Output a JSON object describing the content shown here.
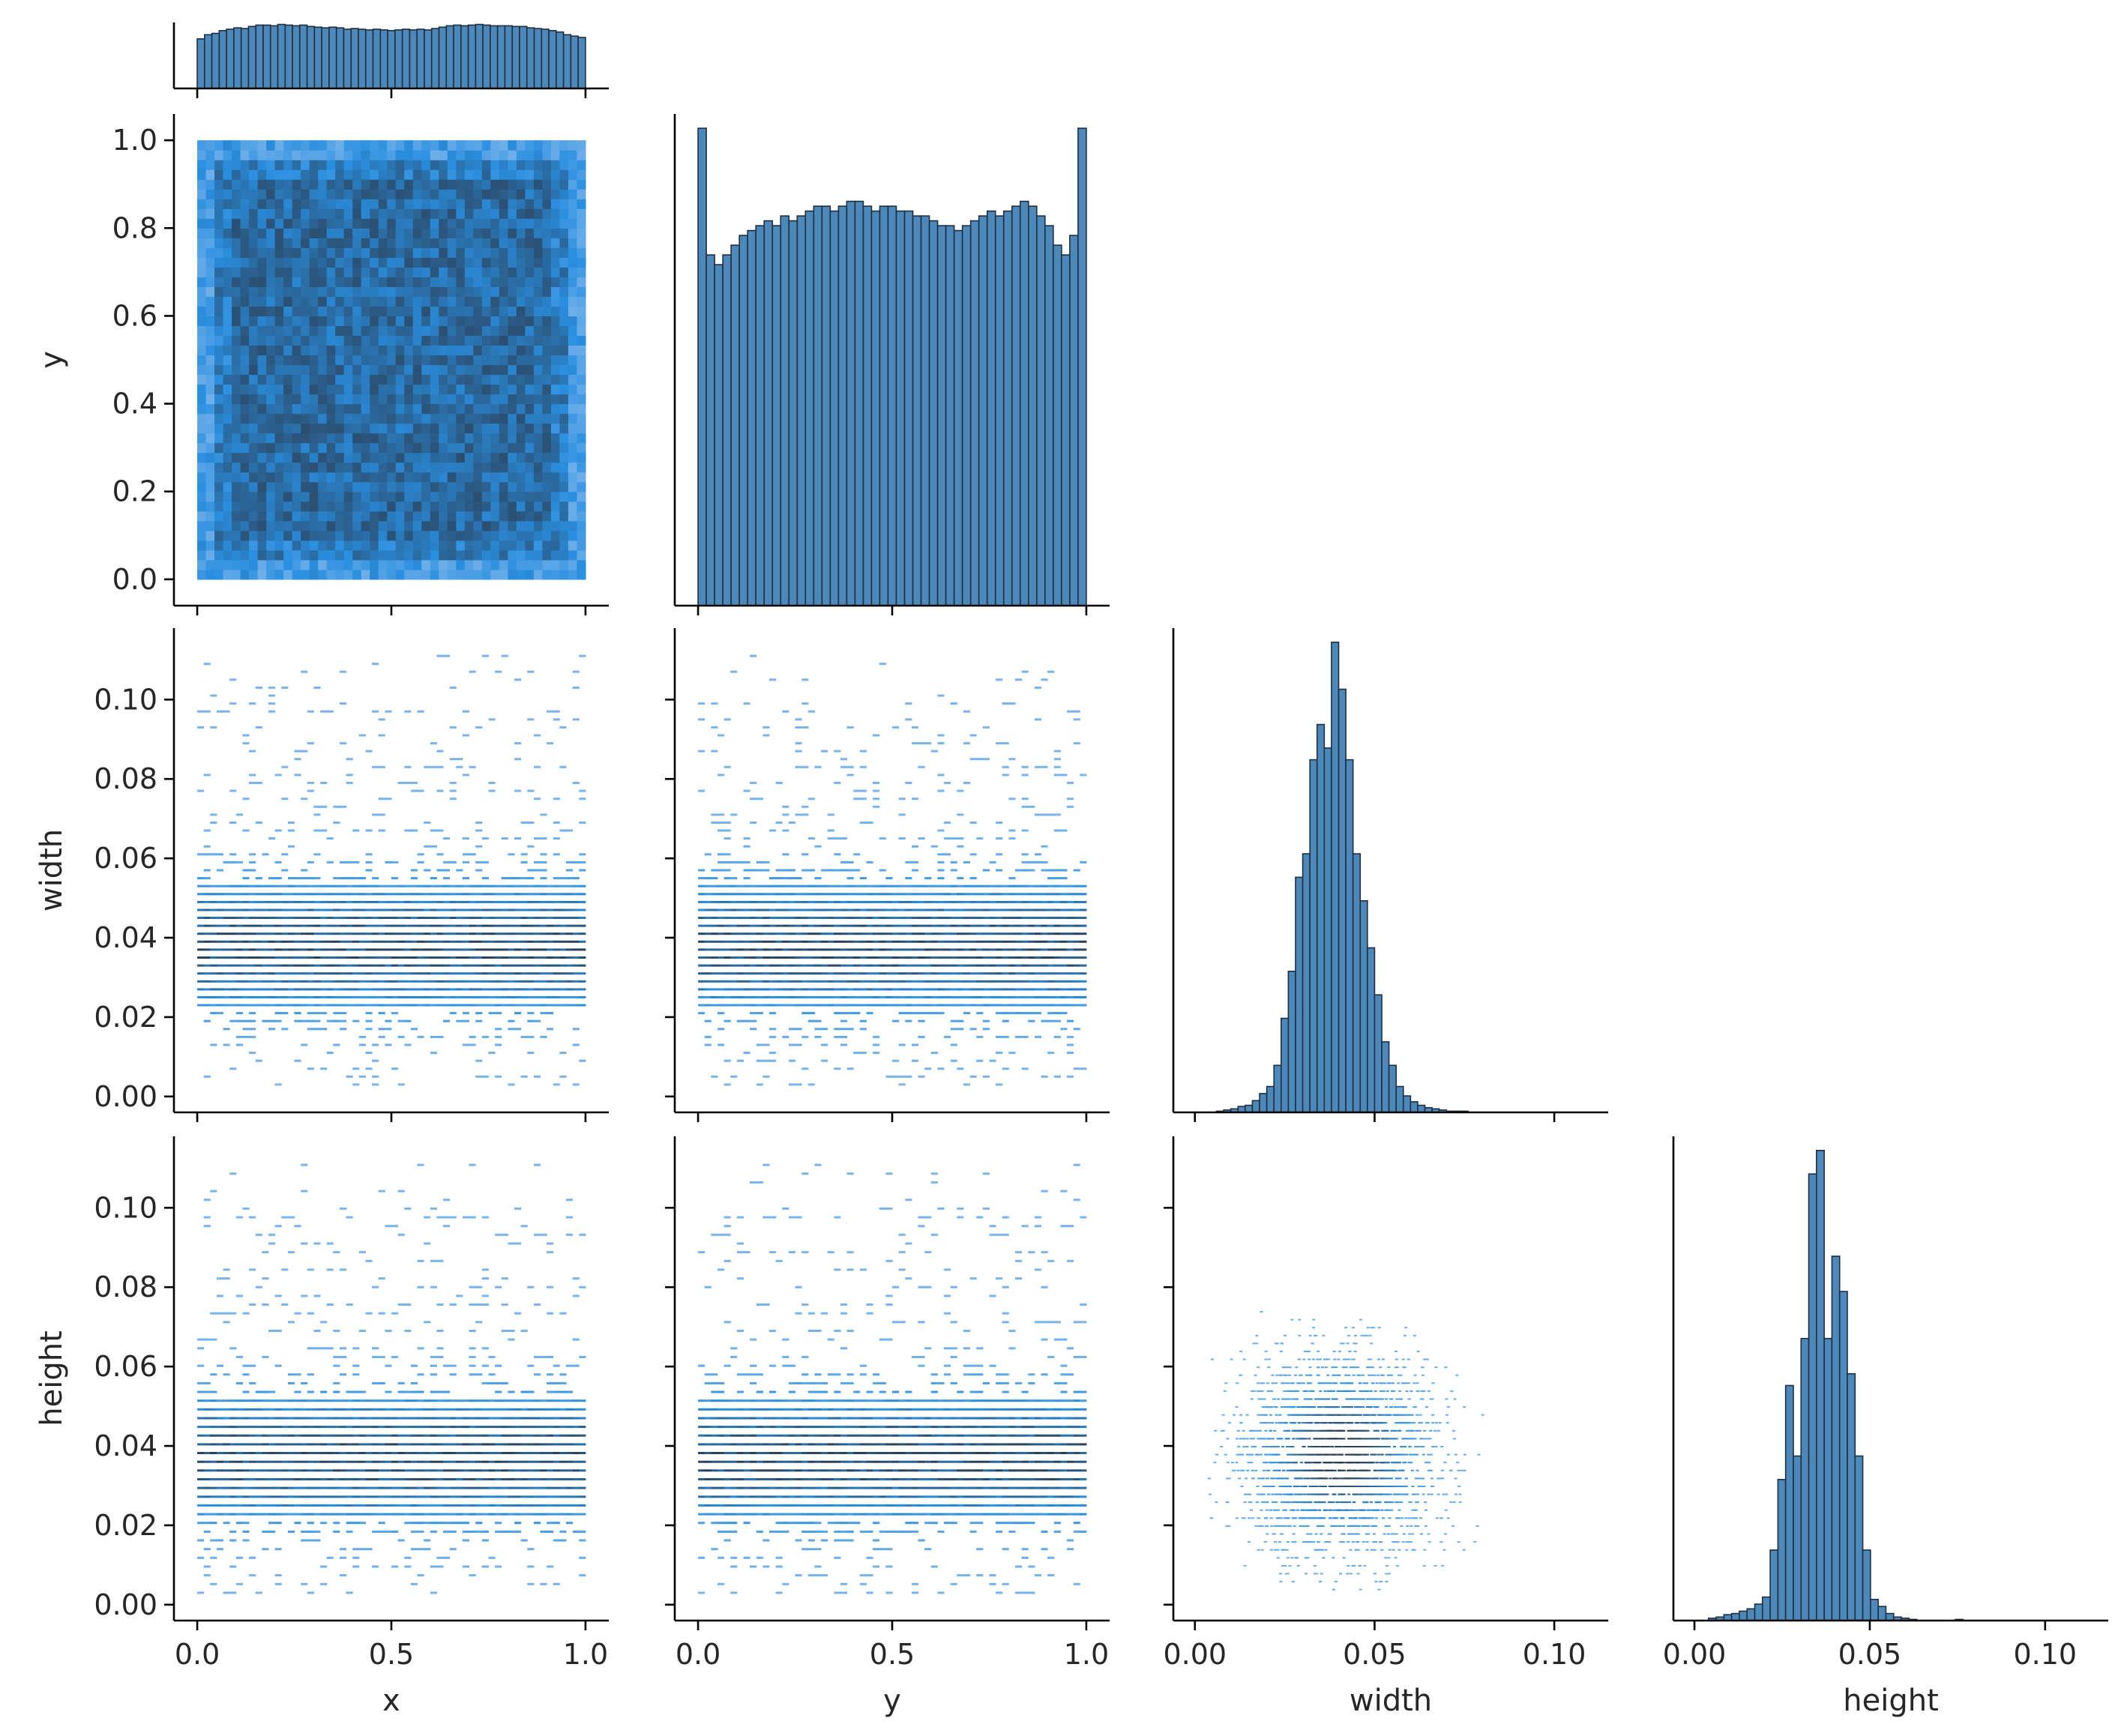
{
  "figure": {
    "variables": [
      "x",
      "y",
      "width",
      "height"
    ],
    "layout": "corner"
  },
  "colors": {
    "hist_fill": "#4c88ba",
    "hist_edge": "#1f2f3f",
    "heat_low": "#9cc4ef",
    "heat_mid": "#2a8fe0",
    "heat_high": "#2b3f55"
  },
  "chart_data": [
    {
      "type": "bar",
      "name": "hist-x",
      "xlabel": "",
      "ylabel": "",
      "xlim": [
        -0.06,
        1.06
      ],
      "x_ticks": [],
      "x_tick_labels": [],
      "bin_range": [
        0,
        1
      ],
      "values": [
        72,
        78,
        80,
        84,
        86,
        88,
        87,
        90,
        92,
        92,
        91,
        93,
        92,
        91,
        92,
        90,
        89,
        88,
        89,
        88,
        86,
        87,
        86,
        85,
        86,
        85,
        84,
        85,
        86,
        85,
        86,
        85,
        87,
        89,
        91,
        92,
        91,
        92,
        93,
        92,
        91,
        91,
        91,
        90,
        90,
        88,
        87,
        86,
        84,
        82,
        78,
        76,
        74
      ]
    },
    {
      "type": "heatmap",
      "name": "x-vs-y",
      "xlabel": "",
      "ylabel": "y",
      "xlim": [
        -0.06,
        1.06
      ],
      "ylim": [
        -0.06,
        1.06
      ],
      "y_ticks": [
        0.0,
        0.2,
        0.4,
        0.6,
        0.8,
        1.0
      ],
      "y_tick_labels": [
        "0.0",
        "0.2",
        "0.4",
        "0.6",
        "0.8",
        "1.0"
      ],
      "x_range": [
        0,
        1
      ],
      "y_range": [
        0,
        1
      ],
      "grid": [
        45,
        45
      ]
    },
    {
      "type": "bar",
      "name": "hist-y",
      "xlabel": "",
      "ylabel": "",
      "xlim": [
        -0.06,
        1.06
      ],
      "x_ticks": [],
      "x_tick_labels": [],
      "bin_range": [
        0,
        1
      ],
      "values": [
        98,
        72,
        70,
        72,
        74,
        76,
        77,
        78,
        79,
        78,
        80,
        79,
        80,
        81,
        82,
        82,
        81,
        82,
        83,
        83,
        82,
        81,
        82,
        82,
        81,
        81,
        80,
        80,
        79,
        78,
        78,
        77,
        78,
        79,
        80,
        81,
        80,
        81,
        82,
        83,
        82,
        80,
        78,
        74,
        72,
        76,
        98
      ]
    },
    {
      "type": "heatmap",
      "name": "x-vs-width",
      "xlabel": "",
      "ylabel": "width",
      "xlim": [
        -0.06,
        1.06
      ],
      "ylim": [
        -0.004,
        0.118
      ],
      "y_ticks": [
        0.0,
        0.02,
        0.04,
        0.06,
        0.08,
        0.1
      ],
      "y_tick_labels": [
        "0.00",
        "0.02",
        "0.04",
        "0.06",
        "0.08",
        "0.10"
      ],
      "x_range": [
        0,
        1
      ],
      "y_range": [
        0,
        0.112
      ]
    },
    {
      "type": "heatmap",
      "name": "y-vs-width",
      "xlabel": "",
      "ylabel": "",
      "xlim": [
        -0.06,
        1.06
      ],
      "ylim": [
        -0.004,
        0.118
      ],
      "x_range": [
        0,
        1
      ],
      "y_range": [
        0,
        0.112
      ]
    },
    {
      "type": "bar",
      "name": "hist-width",
      "xlabel": "",
      "ylabel": "",
      "xlim": [
        -0.006,
        0.115
      ],
      "x_ticks": [],
      "x_tick_labels": [],
      "bin_edges_start": 0.004,
      "bin_width": 0.002,
      "values": [
        0,
        1,
        2,
        3,
        5,
        6,
        10,
        16,
        22,
        40,
        80,
        120,
        200,
        220,
        300,
        330,
        310,
        400,
        360,
        300,
        220,
        180,
        140,
        100,
        60,
        40,
        22,
        14,
        9,
        6,
        4,
        3,
        2,
        1,
        1,
        1,
        0
      ]
    },
    {
      "type": "heatmap",
      "name": "x-vs-height",
      "xlabel": "x",
      "ylabel": "height",
      "xlim": [
        -0.06,
        1.06
      ],
      "ylim": [
        -0.004,
        0.118
      ],
      "x_ticks": [
        0.0,
        0.5,
        1.0
      ],
      "x_tick_labels": [
        "0.0",
        "0.5",
        "1.0"
      ],
      "y_ticks": [
        0.0,
        0.02,
        0.04,
        0.06,
        0.08,
        0.1
      ],
      "y_tick_labels": [
        "0.00",
        "0.02",
        "0.04",
        "0.06",
        "0.08",
        "0.10"
      ],
      "x_range": [
        0,
        1
      ],
      "y_range": [
        0,
        0.112
      ]
    },
    {
      "type": "heatmap",
      "name": "y-vs-height",
      "xlabel": "y",
      "ylabel": "",
      "xlim": [
        -0.06,
        1.06
      ],
      "ylim": [
        -0.004,
        0.118
      ],
      "x_ticks": [
        0.0,
        0.5,
        1.0
      ],
      "x_tick_labels": [
        "0.0",
        "0.5",
        "1.0"
      ],
      "x_range": [
        0,
        1
      ],
      "y_range": [
        0,
        0.112
      ]
    },
    {
      "type": "heatmap",
      "name": "width-vs-height",
      "xlabel": "width",
      "ylabel": "",
      "xlim": [
        -0.006,
        0.115
      ],
      "ylim": [
        -0.004,
        0.118
      ],
      "x_ticks": [
        0.0,
        0.05,
        0.1
      ],
      "x_tick_labels": [
        "0.00",
        "0.05",
        "0.10"
      ],
      "x_range": [
        0.0,
        0.11
      ],
      "y_range": [
        0,
        0.112
      ]
    },
    {
      "type": "bar",
      "name": "hist-height",
      "xlabel": "height",
      "ylabel": "",
      "xlim": [
        -0.006,
        0.118
      ],
      "x_ticks": [
        0.0,
        0.05,
        0.1
      ],
      "x_tick_labels": [
        "0.00",
        "0.05",
        "0.10"
      ],
      "bin_edges_start": 0.004,
      "bin_width": 0.0022,
      "values": [
        2,
        3,
        5,
        6,
        8,
        10,
        14,
        20,
        60,
        120,
        200,
        140,
        240,
        380,
        400,
        240,
        310,
        280,
        210,
        140,
        60,
        18,
        12,
        6,
        3,
        2,
        1,
        0,
        0,
        0,
        0,
        0,
        1
      ]
    }
  ]
}
